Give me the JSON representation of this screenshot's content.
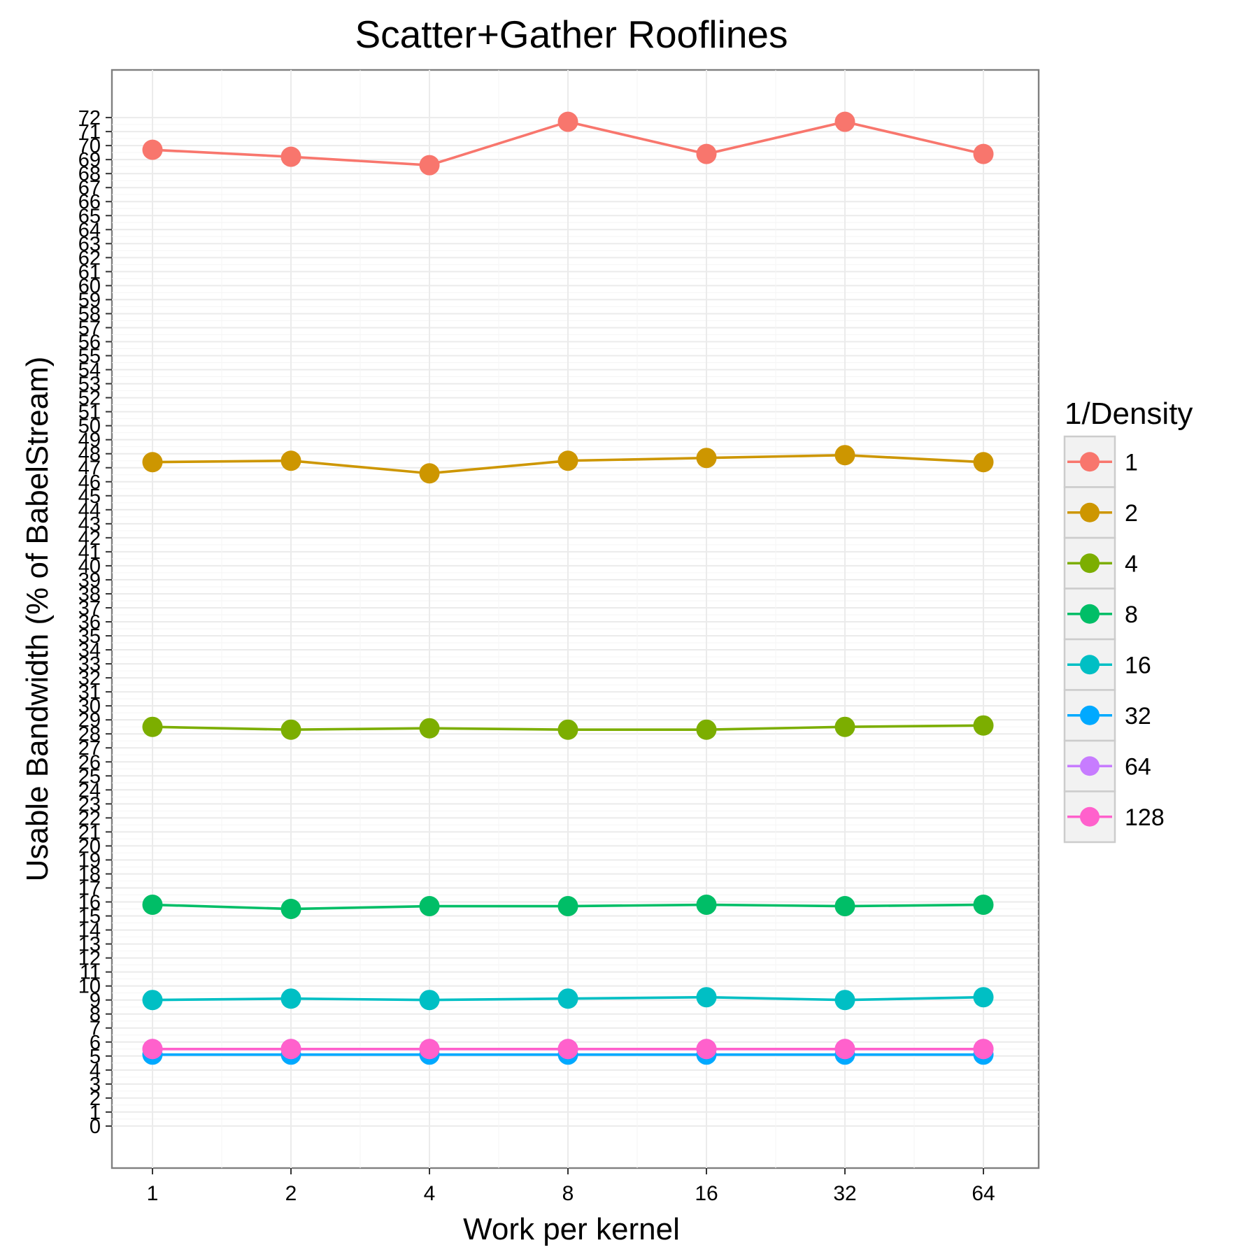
{
  "chart_data": {
    "type": "line",
    "title": "Scatter+Gather Rooflines",
    "xlabel": "Work per kernel",
    "ylabel": "Usable Bandwidth (% of BabelStream)",
    "x": [
      "1",
      "2",
      "4",
      "8",
      "16",
      "32",
      "64"
    ],
    "x_scale": "log2",
    "y_ticks": [
      0,
      1,
      2,
      3,
      4,
      5,
      6,
      7,
      8,
      9,
      10,
      11,
      12,
      13,
      14,
      15,
      16,
      17,
      18,
      19,
      20,
      21,
      22,
      23,
      24,
      25,
      26,
      27,
      28,
      29,
      30,
      31,
      32,
      33,
      34,
      35,
      36,
      37,
      38,
      39,
      40,
      41,
      42,
      43,
      44,
      45,
      46,
      47,
      48,
      49,
      50,
      51,
      52,
      53,
      54,
      55,
      56,
      57,
      58,
      59,
      60,
      61,
      62,
      63,
      64,
      65,
      66,
      67,
      68,
      69,
      70,
      71,
      72
    ],
    "ylim": [
      -3,
      75.4
    ],
    "grid": true,
    "legend": {
      "title": "1/Density",
      "placement": "right",
      "entries": [
        "1",
        "2",
        "4",
        "8",
        "16",
        "32",
        "64",
        "128"
      ]
    },
    "series": [
      {
        "name": "1",
        "color": "#F8766D",
        "values": [
          69.7,
          69.2,
          68.6,
          71.7,
          69.4,
          71.7,
          69.4
        ]
      },
      {
        "name": "2",
        "color": "#CD9600",
        "values": [
          47.4,
          47.5,
          46.6,
          47.5,
          47.7,
          47.9,
          47.4
        ]
      },
      {
        "name": "4",
        "color": "#7CAE00",
        "values": [
          28.5,
          28.3,
          28.4,
          28.3,
          28.3,
          28.5,
          28.6
        ]
      },
      {
        "name": "8",
        "color": "#00BE67",
        "values": [
          15.8,
          15.5,
          15.7,
          15.7,
          15.8,
          15.7,
          15.8
        ]
      },
      {
        "name": "16",
        "color": "#00BFC4",
        "values": [
          9.0,
          9.1,
          9.0,
          9.1,
          9.2,
          9.0,
          9.2
        ]
      },
      {
        "name": "32",
        "color": "#00A9FF",
        "values": [
          5.1,
          5.1,
          5.1,
          5.1,
          5.1,
          5.1,
          5.1
        ]
      },
      {
        "name": "64",
        "color": "#C77CFF",
        "values": [
          5.5,
          5.5,
          5.5,
          5.5,
          5.5,
          5.5,
          5.5
        ]
      },
      {
        "name": "128",
        "color": "#FF61CC",
        "values": [
          5.5,
          5.5,
          5.5,
          5.5,
          5.5,
          5.5,
          5.5
        ]
      }
    ]
  }
}
